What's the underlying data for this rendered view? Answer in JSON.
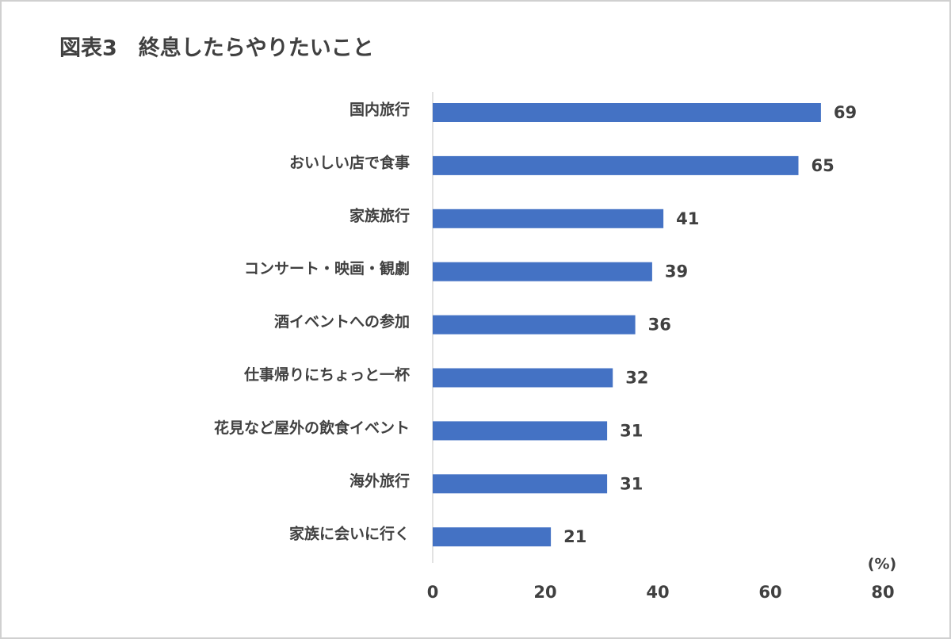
{
  "chart_data": {
    "type": "hbar",
    "title": "図表3　終息したらやりたいこと",
    "categories": [
      "国内旅行",
      "おいしい店で食事",
      "家族旅行",
      "コンサート・映画・観劇",
      "酒イベントへの参加",
      "仕事帰りにちょっと一杯",
      "花見など屋外の飲食イベント",
      "海外旅行",
      "家族に会いに行く"
    ],
    "values": [
      69,
      65,
      41,
      39,
      36,
      32,
      31,
      31,
      21
    ],
    "color": "#4472c4",
    "xlim": [
      0,
      80
    ],
    "xticks": [
      0,
      20,
      40,
      60,
      80
    ],
    "x_unit_label": "(%)",
    "grid": false
  }
}
